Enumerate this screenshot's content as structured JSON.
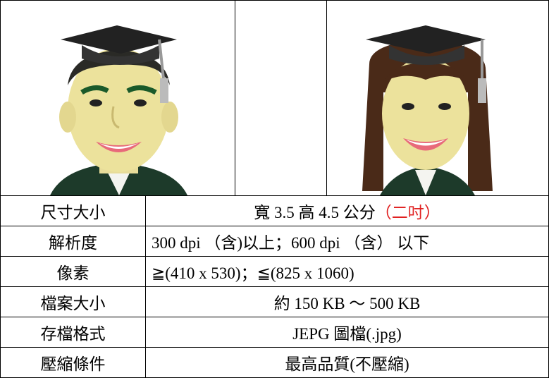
{
  "table": {
    "rows": [
      {
        "label": "尺寸大小",
        "value": "寬 3.5 高 4.5 公分",
        "note": "（二吋）"
      },
      {
        "label": "解析度",
        "value": "300 dpi （含)以上；600 dpi （含） 以下"
      },
      {
        "label": "像素",
        "value": "≧(410 x 530)；≦(825 x 1060)"
      },
      {
        "label": "檔案大小",
        "value": "約 150 KB ～ 500 KB"
      },
      {
        "label": "存檔格式",
        "value": "JEPG 圖檔(.jpg)"
      },
      {
        "label": "壓縮條件",
        "value": "最高品質(不壓縮)"
      }
    ]
  }
}
